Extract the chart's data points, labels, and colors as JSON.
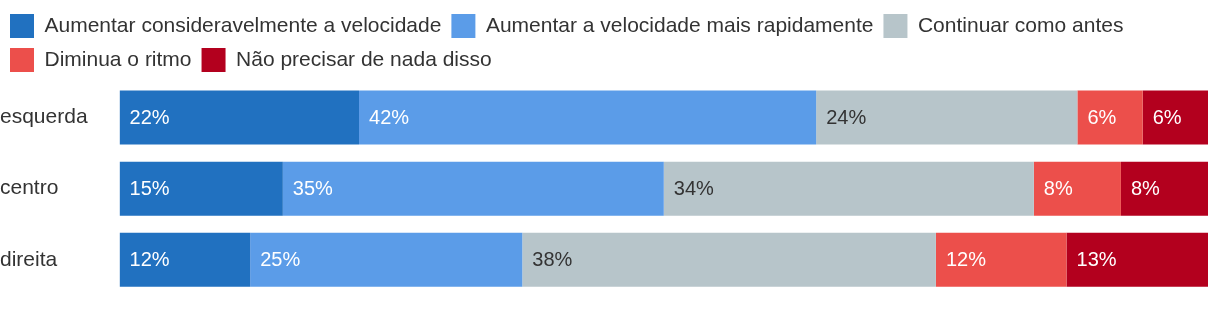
{
  "chart_data": {
    "type": "bar",
    "orientation": "horizontal",
    "stacked": true,
    "categories": [
      "esquerda",
      "centro",
      "direita"
    ],
    "xlim": [
      0,
      100
    ],
    "tick_labels": "y",
    "legend": "top left",
    "series": [
      {
        "name": "Aumentar consideravelmente a velocidade",
        "color": "#2171c0",
        "values": [
          22,
          15,
          12
        ],
        "value_labels": [
          "22%",
          "15%",
          "12%"
        ]
      },
      {
        "name": "Aumentar a velocidade mais rapidamente",
        "color": "#5b9ce8",
        "values": [
          42,
          35,
          25
        ],
        "value_labels": [
          "42%",
          "35%",
          "25%"
        ]
      },
      {
        "name": "Continuar como antes",
        "color": "#b7c5ca",
        "values": [
          24,
          34,
          38
        ],
        "value_labels": [
          "24%",
          "34%",
          "38%"
        ]
      },
      {
        "name": "Diminua o ritmo",
        "color": "#ec4f4b",
        "values": [
          6,
          8,
          12
        ],
        "value_labels": [
          "6%",
          "8%",
          "12%"
        ]
      },
      {
        "name": "Não precisar de nada disso",
        "color": "#b3001e",
        "values": [
          6,
          8,
          13
        ],
        "value_labels": [
          "6%",
          "8%",
          "13%"
        ]
      }
    ]
  }
}
